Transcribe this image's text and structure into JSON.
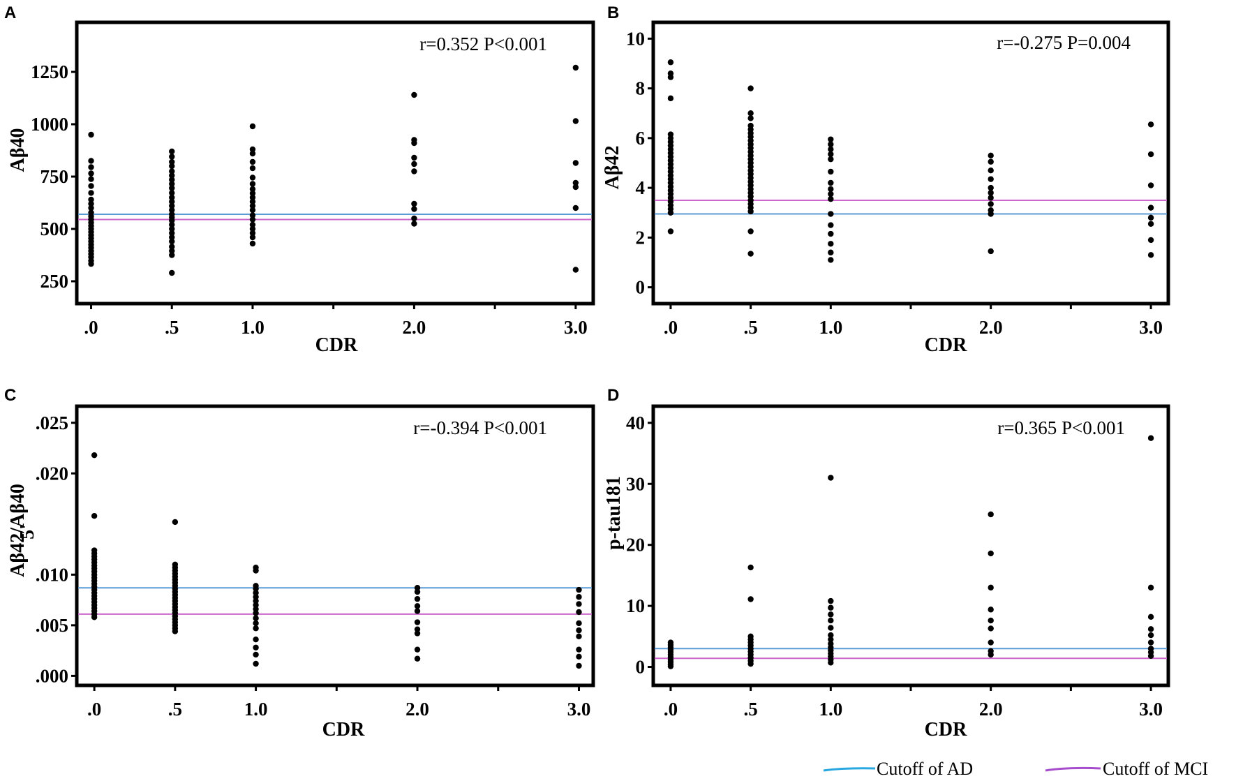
{
  "figure": {
    "colors": {
      "ad": "#5b9bd5",
      "mci": "#cc66cc",
      "legend_ad": "#29a8e0",
      "legend_mci": "#a64dcc"
    },
    "legend": {
      "ad_label": "Cutoff of AD",
      "mci_label": "Cutoff of MCI"
    }
  },
  "chart_data": [
    {
      "type": "scatter",
      "letter": "A",
      "title": "",
      "xlabel": "CDR",
      "ylabel": "Aβ40",
      "annotation": "r=0.352 P<0.001",
      "x_ticks": [
        0,
        0.5,
        1,
        2,
        3
      ],
      "x_tick_labels": [
        ".0",
        ".5",
        "1.0",
        "2.0",
        "3.0"
      ],
      "y_ticks": [
        250,
        500,
        750,
        1000,
        1250
      ],
      "y_tick_labels": [
        "250",
        "500",
        "750",
        "1000",
        "1250"
      ],
      "xlim": [
        -0.08,
        3.1
      ],
      "ylim": [
        150,
        1480
      ],
      "cutoff_ad": 570,
      "cutoff_mci": 545,
      "series": [
        {
          "x": 0,
          "values": [
            950,
            825,
            795,
            765,
            738,
            705,
            672,
            640,
            620,
            600,
            578,
            560,
            545,
            530,
            515,
            500,
            485,
            470,
            455,
            440,
            425,
            410,
            395,
            380,
            365,
            348,
            333
          ]
        },
        {
          "x": 0.5,
          "values": [
            870,
            845,
            820,
            800,
            775,
            755,
            735,
            715,
            695,
            672,
            650,
            630,
            610,
            590,
            570,
            555,
            540,
            520,
            500,
            480,
            460,
            440,
            415,
            395,
            375,
            290
          ]
        },
        {
          "x": 1,
          "values": [
            990,
            880,
            860,
            820,
            790,
            745,
            715,
            690,
            670,
            650,
            630,
            610,
            590,
            565,
            545,
            520,
            500,
            480,
            460,
            430
          ]
        },
        {
          "x": 2,
          "values": [
            1140,
            925,
            910,
            840,
            810,
            775,
            620,
            595,
            550,
            525
          ]
        },
        {
          "x": 3,
          "values": [
            1270,
            1015,
            815,
            720,
            700,
            600,
            305
          ]
        }
      ]
    },
    {
      "type": "scatter",
      "letter": "B",
      "title": "",
      "xlabel": "CDR",
      "ylabel": "Aβ42",
      "annotation": "r=-0.275  P=0.004",
      "x_ticks": [
        0,
        0.5,
        1,
        2,
        3
      ],
      "x_tick_labels": [
        ".0",
        ".5",
        "1.0",
        "2.0",
        "3.0"
      ],
      "y_ticks": [
        0,
        2,
        4,
        6,
        8,
        10
      ],
      "y_tick_labels": [
        "0",
        "2",
        "4",
        "6",
        "8",
        "10"
      ],
      "xlim": [
        -0.1,
        3.1
      ],
      "ylim": [
        -0.6,
        10.6
      ],
      "cutoff_ad": 2.95,
      "cutoff_mci": 3.5,
      "series": [
        {
          "x": 0,
          "values": [
            9.05,
            8.6,
            8.45,
            7.6,
            6.15,
            6.0,
            5.85,
            5.7,
            5.55,
            5.4,
            5.25,
            5.1,
            4.95,
            4.8,
            4.65,
            4.5,
            4.35,
            4.2,
            4.05,
            3.9,
            3.75,
            3.6,
            3.45,
            3.3,
            3.15,
            3.0,
            2.25
          ]
        },
        {
          "x": 0.5,
          "values": [
            8.0,
            7.0,
            6.8,
            6.5,
            6.35,
            6.2,
            6.05,
            5.9,
            5.75,
            5.6,
            5.45,
            5.3,
            5.15,
            5.0,
            4.85,
            4.7,
            4.55,
            4.4,
            4.25,
            4.1,
            3.95,
            3.8,
            3.65,
            3.5,
            3.35,
            3.2,
            3.05,
            2.25,
            1.35
          ]
        },
        {
          "x": 1,
          "values": [
            5.95,
            5.75,
            5.55,
            5.35,
            5.15,
            4.65,
            4.2,
            3.95,
            3.75,
            3.55,
            2.95,
            2.5,
            2.15,
            1.75,
            1.4,
            1.1
          ]
        },
        {
          "x": 2,
          "values": [
            5.3,
            5.05,
            4.7,
            4.35,
            4.0,
            3.8,
            3.6,
            3.35,
            3.1,
            2.95,
            1.45
          ]
        },
        {
          "x": 3,
          "values": [
            6.55,
            5.35,
            4.1,
            3.2,
            2.8,
            2.55,
            1.9,
            1.3
          ]
        }
      ]
    },
    {
      "type": "scatter",
      "letter": "C",
      "title": "",
      "xlabel": "CDR",
      "ylabel": "Aβ42/Aβ40",
      "ylabel_fragment": "5'",
      "annotation": "r=-0.394 P<0.001",
      "x_ticks": [
        0,
        0.5,
        1,
        2,
        3
      ],
      "x_tick_labels": [
        ".0",
        ".5",
        "1.0",
        "2.0",
        "3.0"
      ],
      "y_ticks": [
        0,
        0.005,
        0.01,
        0.02,
        0.025
      ],
      "y_tick_labels": [
        ".000",
        ".005",
        ".010",
        ".020",
        ".025"
      ],
      "xlim": [
        -0.1,
        3.08
      ],
      "ylim": [
        -0.0008,
        0.0265
      ],
      "cutoff_ad": 0.0087,
      "cutoff_mci": 0.0061,
      "series": [
        {
          "x": 0,
          "values": [
            0.0218,
            0.0158,
            0.0124,
            0.0121,
            0.0118,
            0.0115,
            0.0112,
            0.0109,
            0.0106,
            0.0103,
            0.01,
            0.0097,
            0.0094,
            0.0091,
            0.0088,
            0.0085,
            0.0082,
            0.0079,
            0.0076,
            0.0073,
            0.007,
            0.0067,
            0.0064,
            0.0061,
            0.0058
          ]
        },
        {
          "x": 0.5,
          "values": [
            0.0152,
            0.011,
            0.0107,
            0.0104,
            0.0101,
            0.0098,
            0.0095,
            0.0092,
            0.0089,
            0.0086,
            0.0083,
            0.008,
            0.0077,
            0.0074,
            0.0071,
            0.0068,
            0.0065,
            0.0062,
            0.0059,
            0.0056,
            0.0053,
            0.005,
            0.0047,
            0.0044
          ]
        },
        {
          "x": 1,
          "values": [
            0.0107,
            0.0104,
            0.0089,
            0.0086,
            0.0082,
            0.0078,
            0.0074,
            0.007,
            0.0066,
            0.0062,
            0.0057,
            0.0052,
            0.0047,
            0.0036,
            0.0028,
            0.0021,
            0.0012
          ]
        },
        {
          "x": 2,
          "values": [
            0.0087,
            0.0083,
            0.0076,
            0.0069,
            0.0064,
            0.0053,
            0.0046,
            0.0042,
            0.0026,
            0.0017
          ]
        },
        {
          "x": 3,
          "values": [
            0.0085,
            0.0078,
            0.0071,
            0.0063,
            0.0052,
            0.0045,
            0.0039,
            0.0026,
            0.0019,
            0.001
          ]
        }
      ]
    },
    {
      "type": "scatter",
      "letter": "D",
      "title": "",
      "xlabel": "CDR",
      "ylabel": "p-tau181",
      "annotation": "r=0.365 P<0.001",
      "x_ticks": [
        0,
        0.5,
        1,
        2,
        3
      ],
      "x_tick_labels": [
        ".0",
        ".5",
        "1.0",
        "2.0",
        "3.0"
      ],
      "y_ticks": [
        0,
        10,
        20,
        30,
        40
      ],
      "y_tick_labels": [
        "0",
        "10",
        "20",
        "30",
        "40"
      ],
      "xlim": [
        -0.1,
        3.1
      ],
      "ylim": [
        -2.8,
        42.5
      ],
      "cutoff_ad": 3.0,
      "cutoff_mci": 1.4,
      "series": [
        {
          "x": 0,
          "values": [
            4.0,
            3.6,
            3.2,
            2.8,
            2.4,
            2.0,
            1.6,
            1.2,
            0.8,
            0.4,
            0.1
          ]
        },
        {
          "x": 0.5,
          "values": [
            16.3,
            11.1,
            5.0,
            4.5,
            4.0,
            3.5,
            3.0,
            2.5,
            2.0,
            1.5,
            1.0,
            0.5
          ]
        },
        {
          "x": 1,
          "values": [
            31.0,
            10.8,
            9.7,
            8.6,
            7.6,
            6.4,
            5.2,
            4.5,
            3.8,
            3.2,
            2.7,
            2.2,
            1.7,
            1.2,
            0.7
          ]
        },
        {
          "x": 2,
          "values": [
            25.0,
            18.6,
            13.0,
            9.4,
            7.6,
            6.3,
            4.0,
            2.6,
            2.0
          ]
        },
        {
          "x": 3,
          "values": [
            37.5,
            13.0,
            8.2,
            6.2,
            5.2,
            4.0,
            3.0,
            2.4,
            1.8
          ]
        }
      ]
    }
  ]
}
